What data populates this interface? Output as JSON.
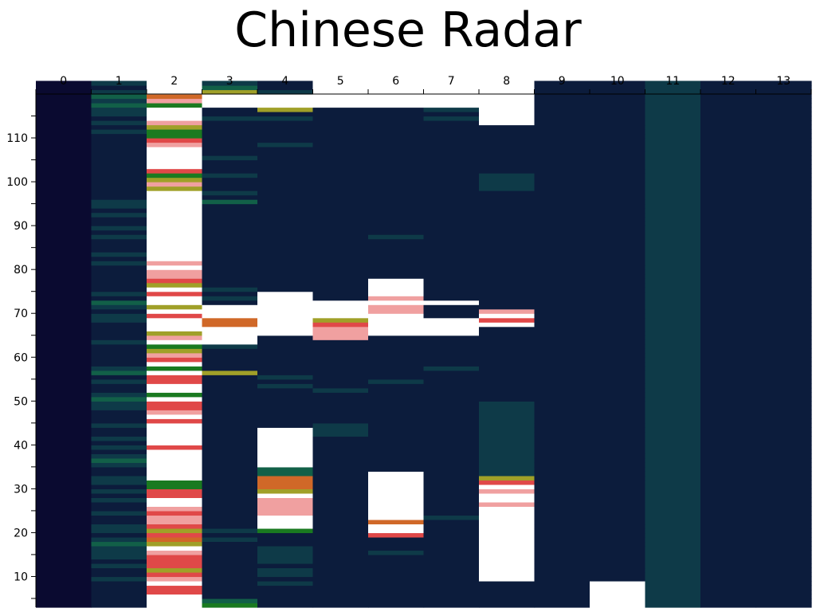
{
  "chart_data": {
    "type": "heatmap",
    "title": "Chinese Radar",
    "xlabel": "",
    "ylabel": "",
    "x_tick_labels": [
      "0",
      "1",
      "2",
      "3",
      "4",
      "5",
      "6",
      "7",
      "8",
      "9",
      "10",
      "11",
      "12",
      "13"
    ],
    "y_tick_labels": [
      "10",
      "20",
      "30",
      "40",
      "50",
      "60",
      "70",
      "80",
      "90",
      "100",
      "110"
    ],
    "ylim": [
      3,
      120
    ],
    "xlim": [
      0,
      14
    ],
    "row_start": 3,
    "row_step": 1,
    "orientation": "bottom-to-top",
    "colormap": [
      "#0a0a30",
      "#0c1c3c",
      "#0e3a48",
      "#126048",
      "#1a7a20",
      "#a0a028",
      "#d06828",
      "#e04848",
      "#f0a0a0",
      "#ffffff"
    ],
    "columns": [
      "000000000000000000000000000000000000000000000000000000000000000000000000000000000000000000000000000000000000000000000000",
      "111111211212223212211211212122112321212112111223211213211111211112212312111111212111212112122111111111111111212122323212",
      "999779875777895675788789977449999999799999798779499779497854985999795997957889899999999999999995854799999874458999486999",
      "431111111111111212111111111111111111111111111111111115111112999966999121211111111111111111113121112111211111111211999532",
      "111112122122221114999888895666339999999991111111112121111111119999999999111111111111111111111111111111111211111215999211",
      "111111111111111111111111111111111111111222111111121111111111188875999911111111111111111111111111111111111111111111999999",
      "111111111111211179969999999999911111111111111111111211111111119999988989999111111111211111111111111111111111111111999999",
      "111111111111111111112111111111111111111111111111111111211111119999111911111111111111111111111111111111111111111212999999",
      "111111999999999999999998998975222222222222222221111111111111111197981111111111111111111111111112222111111111119999999999",
      "111111111111111111111111111111111111111111111111111111111111111111111111111111111111111111111111111111111111111111111111",
      "999999111111111111111111111111111111111111111111111111111111111111111111111111111111111111111111111111111111111111111111",
      "222222222222222222222222222222222222222222222222222222222222222222222222222222222222222222222222222222222222222222222222",
      "111111111111111111111111111111111111111111111111111111111111111111111111111111111111111111111111111111111111111111111111",
      "111111111111111111111111111111111111111111111111111111111111111111111111111111111111111111111111111111111111111111111111"
    ]
  }
}
